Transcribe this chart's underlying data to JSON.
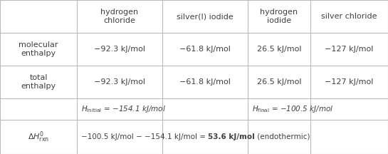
{
  "col_headers": [
    "hydrogen\nchloride",
    "silver(I) iodide",
    "hydrogen\niodide",
    "silver chloride"
  ],
  "mol_enthalpy": [
    "−92.3 kJ/mol",
    "−61.8 kJ/mol",
    "26.5 kJ/mol",
    "−127 kJ/mol"
  ],
  "tot_enthalpy": [
    "−92.3 kJ/mol",
    "−61.8 kJ/mol",
    "26.5 kJ/mol",
    "−127 kJ/mol"
  ],
  "bg_color": "#ffffff",
  "grid_color": "#bbbbbb",
  "text_color": "#404040",
  "figsize": [
    5.45,
    2.16
  ],
  "dpi": 100
}
